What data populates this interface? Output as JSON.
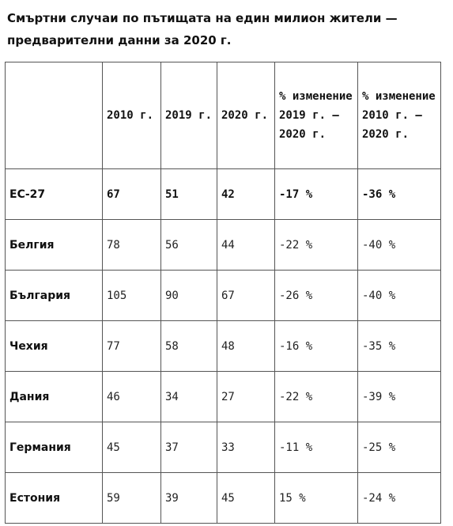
{
  "title": "Смъртни случаи по пътищата на един милион жители — предварителни данни за 2020 г.",
  "table": {
    "headers": [
      "",
      "2010 г.",
      "2019 г.",
      "2020 г.",
      "% изменение 2019 г. — 2020 г.",
      "% изменение 2010 г. — 2020 г."
    ],
    "rows": [
      {
        "country": "ЕС-27",
        "y2010": "67",
        "y2019": "51",
        "y2020": "42",
        "ch1920": "-17 %",
        "ch1020": "-36 %"
      },
      {
        "country": "Белгия",
        "y2010": "78",
        "y2019": "56",
        "y2020": "44",
        "ch1920": "-22 %",
        "ch1020": "-40 %"
      },
      {
        "country": "България",
        "y2010": "105",
        "y2019": "90",
        "y2020": "67",
        "ch1920": "-26 %",
        "ch1020": "-40 %"
      },
      {
        "country": "Чехия",
        "y2010": "77",
        "y2019": "58",
        "y2020": "48",
        "ch1920": "-16 %",
        "ch1020": "-35 %"
      },
      {
        "country": "Дания",
        "y2010": "46",
        "y2019": "34",
        "y2020": "27",
        "ch1920": "-22 %",
        "ch1020": "-39 %"
      },
      {
        "country": "Германия",
        "y2010": "45",
        "y2019": "37",
        "y2020": "33",
        "ch1920": "-11 %",
        "ch1020": "-25 %"
      },
      {
        "country": "Естония",
        "y2010": "59",
        "y2019": "39",
        "y2020": "45",
        "ch1920": "15 %",
        "ch1020": "-24 %"
      }
    ]
  }
}
